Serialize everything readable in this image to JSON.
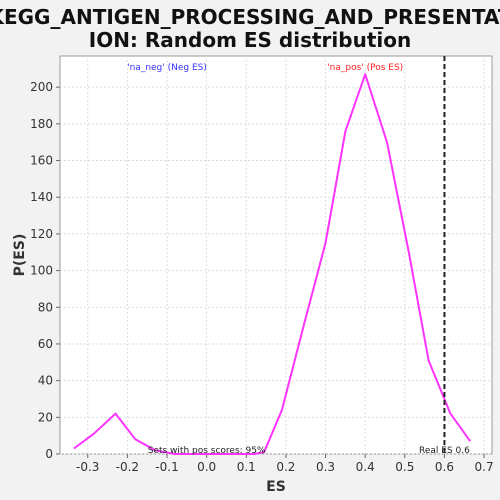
{
  "chart_data": {
    "type": "line",
    "title_lines": [
      "KEGG_ANTIGEN_PROCESSING_AND_PRESENTAT",
      "ION: Random ES distribution"
    ],
    "xlabel": "ES",
    "ylabel": "P(ES)",
    "xlim": [
      -0.37,
      0.72
    ],
    "ylim": [
      0,
      217
    ],
    "xticks": [
      -0.3,
      -0.2,
      -0.1,
      0.0,
      0.1,
      0.2,
      0.3,
      0.4,
      0.5,
      0.6,
      0.7
    ],
    "xtick_labels": [
      "-0.3",
      "-0.2",
      "-0.1",
      "0.0",
      "0.1",
      "0.2",
      "0.3",
      "0.4",
      "0.5",
      "0.6",
      "0.7"
    ],
    "yticks": [
      0,
      20,
      40,
      60,
      80,
      100,
      120,
      140,
      160,
      180,
      200
    ],
    "ytick_labels": [
      "0",
      "20",
      "40",
      "60",
      "80",
      "100",
      "120",
      "140",
      "160",
      "180",
      "200"
    ],
    "grid": true,
    "series": [
      {
        "color": "#ff33ff",
        "x": [
          -0.335,
          -0.285,
          -0.23,
          -0.18,
          -0.13,
          -0.08,
          -0.03,
          0.02,
          0.07,
          0.12,
          0.145,
          0.19,
          0.245,
          0.3,
          0.35,
          0.4,
          0.455,
          0.51,
          0.56,
          0.6,
          0.615,
          0.665
        ],
        "y": [
          3,
          11,
          22,
          8,
          2,
          0,
          0,
          0,
          0,
          0,
          1,
          24,
          70,
          115,
          176,
          207,
          170,
          110,
          51,
          30,
          22,
          7
        ]
      }
    ],
    "legend": [
      {
        "text": "'na_neg' (Neg ES)",
        "color": "#3333ff"
      },
      {
        "text": "'na_pos' (Pos ES)",
        "color": "#ff2222"
      }
    ],
    "real_es": {
      "x": 0.6,
      "label": "Real ES 0.6"
    },
    "annotation": "Sets with pos scores: 95%"
  }
}
